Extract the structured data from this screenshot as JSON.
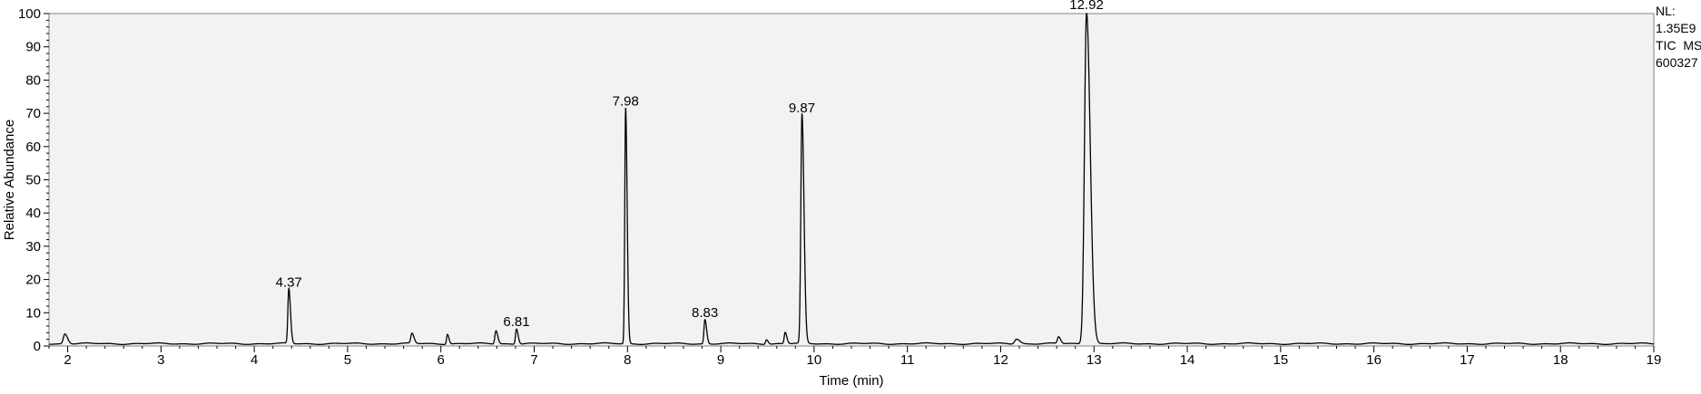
{
  "chart_data": {
    "type": "line",
    "title": "",
    "xlabel": "Time (min)",
    "ylabel": "Relative Abundance",
    "xlim": [
      1.8,
      19
    ],
    "ylim": [
      0,
      100
    ],
    "x_ticks": [
      2,
      3,
      4,
      5,
      6,
      7,
      8,
      9,
      10,
      11,
      12,
      13,
      14,
      15,
      16,
      17,
      18,
      19
    ],
    "y_ticks": [
      0,
      10,
      20,
      30,
      40,
      50,
      60,
      70,
      80,
      90,
      100
    ],
    "grid": false,
    "baseline": 0.7,
    "peaks": [
      {
        "rt": 1.97,
        "height": 3.0,
        "width": 0.016
      },
      {
        "rt": 4.37,
        "height": 16.5,
        "width": 0.01
      },
      {
        "rt": 5.69,
        "height": 3.0,
        "width": 0.012
      },
      {
        "rt": 6.07,
        "height": 3.0,
        "width": 0.009
      },
      {
        "rt": 6.59,
        "height": 4.0,
        "width": 0.011
      },
      {
        "rt": 6.81,
        "height": 4.6,
        "width": 0.01
      },
      {
        "rt": 7.98,
        "height": 71.0,
        "width": 0.009
      },
      {
        "rt": 8.83,
        "height": 7.3,
        "width": 0.01
      },
      {
        "rt": 9.49,
        "height": 1.4,
        "width": 0.01
      },
      {
        "rt": 9.69,
        "height": 3.4,
        "width": 0.01
      },
      {
        "rt": 9.87,
        "height": 69.0,
        "width": 0.012
      },
      {
        "rt": 12.17,
        "height": 1.5,
        "width": 0.02
      },
      {
        "rt": 12.62,
        "height": 2.0,
        "width": 0.012
      },
      {
        "rt": 12.92,
        "height": 100.0,
        "width": 0.022
      }
    ],
    "peak_labels": [
      {
        "x": 4.37,
        "y": 16.5,
        "text": "4.37"
      },
      {
        "x": 6.81,
        "y": 4.6,
        "text": "6.81"
      },
      {
        "x": 7.98,
        "y": 71.0,
        "text": "7.98"
      },
      {
        "x": 8.83,
        "y": 7.3,
        "text": "8.83"
      },
      {
        "x": 9.87,
        "y": 69.0,
        "text": "9.87"
      },
      {
        "x": 12.92,
        "y": 100.0,
        "text": "12.92"
      }
    ],
    "color": "#000000",
    "plot_background": "#f2f2f2"
  },
  "info": {
    "nl_label": "NL:",
    "nl_value": "1.35E9",
    "trace": "TIC  MS",
    "sample": "600327"
  }
}
